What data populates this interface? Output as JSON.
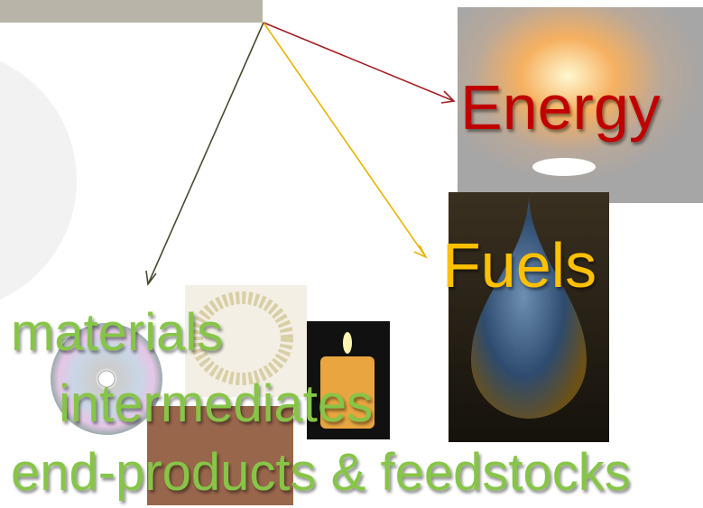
{
  "labels": {
    "energy": "Energy",
    "fuels": "Fuels",
    "materials": "materials",
    "intermediates": "intermediates",
    "end_products": "end-products & feedstocks"
  }
}
